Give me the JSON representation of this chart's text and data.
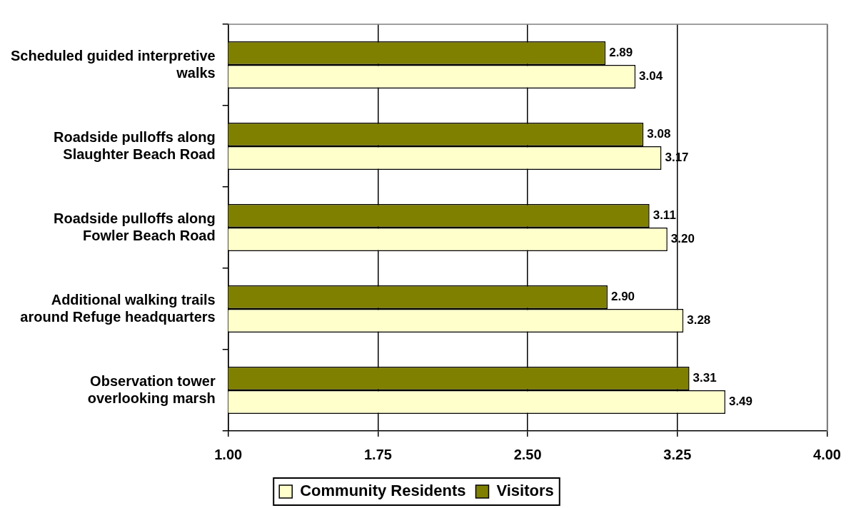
{
  "chart_data": {
    "type": "bar",
    "orientation": "horizontal",
    "categories": [
      "Scheduled guided interpretive walks",
      "Roadside pulloffs along Slaughter Beach Road",
      "Roadside pulloffs along Fowler Beach Road",
      "Additional walking trails around Refuge headquarters",
      "Observation tower overlooking marsh"
    ],
    "series": [
      {
        "name": "Community Residents",
        "color": "#ffffcc",
        "values": [
          3.04,
          3.17,
          3.2,
          3.28,
          3.49
        ],
        "value_labels": [
          "3.04",
          "3.17",
          "3.20",
          "3.28",
          "3.49"
        ]
      },
      {
        "name": "Visitors",
        "color": "#808000",
        "values": [
          2.89,
          3.08,
          3.11,
          2.9,
          3.31
        ],
        "value_labels": [
          "2.89",
          "3.08",
          "3.11",
          "2.90",
          "3.31"
        ]
      }
    ],
    "xlim": [
      1,
      4
    ],
    "xticks": [
      {
        "value": 1,
        "label": "1.00"
      },
      {
        "value": 1.75,
        "label": "1.75"
      },
      {
        "value": 2.5,
        "label": "2.50"
      },
      {
        "value": 3.25,
        "label": "3.25"
      },
      {
        "value": 4,
        "label": "4.00"
      }
    ],
    "grid": "x",
    "legend": "bottom"
  }
}
